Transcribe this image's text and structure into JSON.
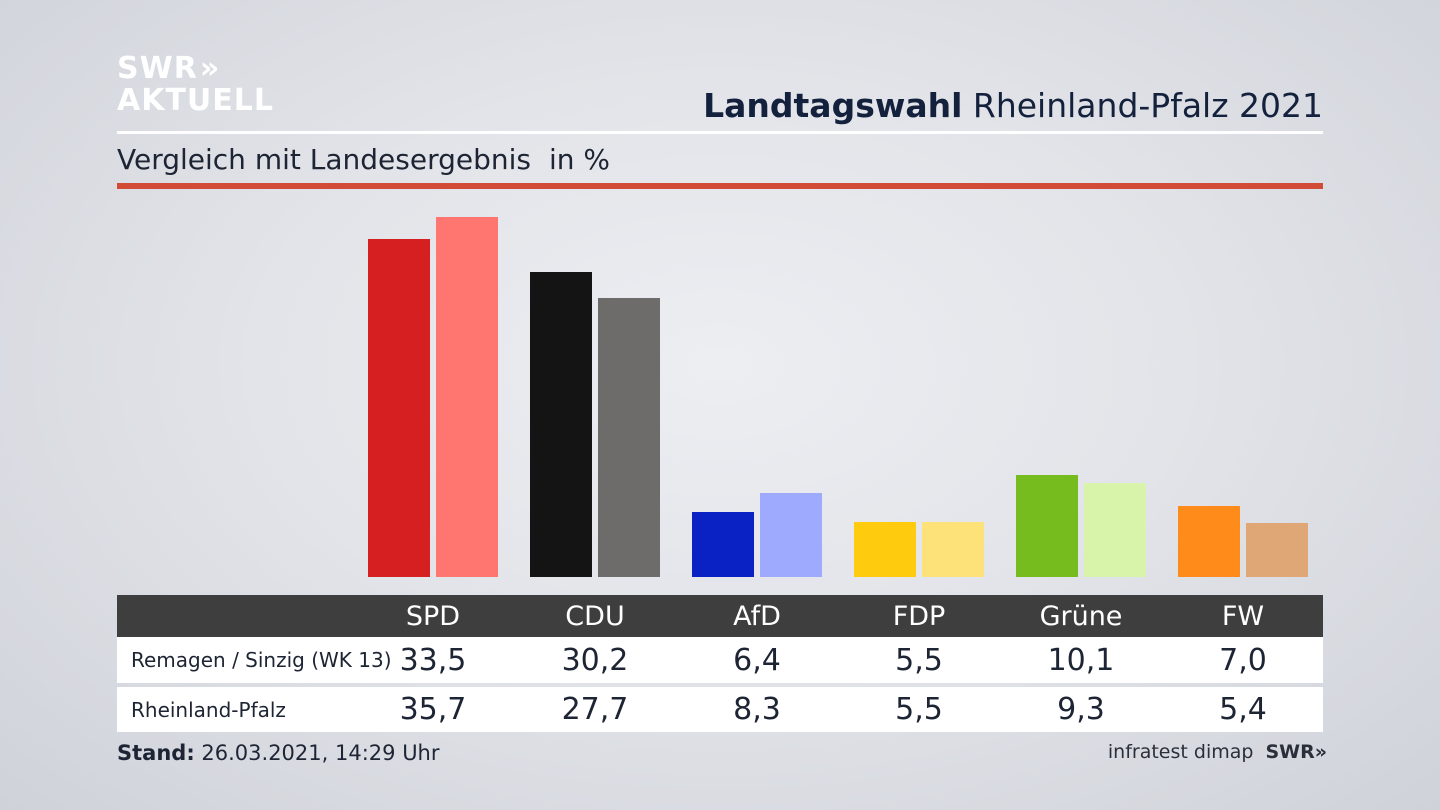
{
  "logo": {
    "line1": "SWR",
    "line2": "AKTUELL",
    "chevron": "»"
  },
  "header": {
    "title_bold": "Landtagswahl",
    "title_rest": "Rheinland-Pfalz 2021",
    "subtitle": "Vergleich mit Landesergebnis",
    "unit": "in %"
  },
  "chart_data": {
    "type": "bar",
    "categories": [
      "SPD",
      "CDU",
      "AfD",
      "FDP",
      "Grüne",
      "FW"
    ],
    "series": [
      {
        "name": "Remagen / Sinzig (WK 13)",
        "values": [
          33.5,
          30.2,
          6.4,
          5.5,
          10.1,
          7.0
        ]
      },
      {
        "name": "Rheinland-Pfalz",
        "values": [
          35.7,
          27.7,
          8.3,
          5.5,
          9.3,
          5.4
        ]
      }
    ],
    "colors": [
      [
        "#d51f20",
        "#ff7670"
      ],
      [
        "#141414",
        "#6e6c6b"
      ],
      [
        "#0a21c4",
        "#9eaafe"
      ],
      [
        "#ffcb0f",
        "#fde27a"
      ],
      [
        "#77bc1f",
        "#d7f4aa"
      ],
      [
        "#ff8b1a",
        "#dea775"
      ]
    ],
    "ylim": [
      0,
      36
    ]
  },
  "table": {
    "headers": [
      "SPD",
      "CDU",
      "AfD",
      "FDP",
      "Grüne",
      "FW"
    ],
    "rows": [
      {
        "label": "Remagen / Sinzig (WK 13)",
        "values": [
          "33,5",
          "30,2",
          "6,4",
          "5,5",
          "10,1",
          "7,0"
        ]
      },
      {
        "label": "Rheinland-Pfalz",
        "values": [
          "35,7",
          "27,7",
          "8,3",
          "5,5",
          "9,3",
          "5,4"
        ]
      }
    ]
  },
  "footer": {
    "stand_label": "Stand:",
    "stand_value": "26.03.2021, 14:29 Uhr",
    "source": "infratest dimap",
    "brand": "SWR",
    "brand_chevron": "»"
  }
}
